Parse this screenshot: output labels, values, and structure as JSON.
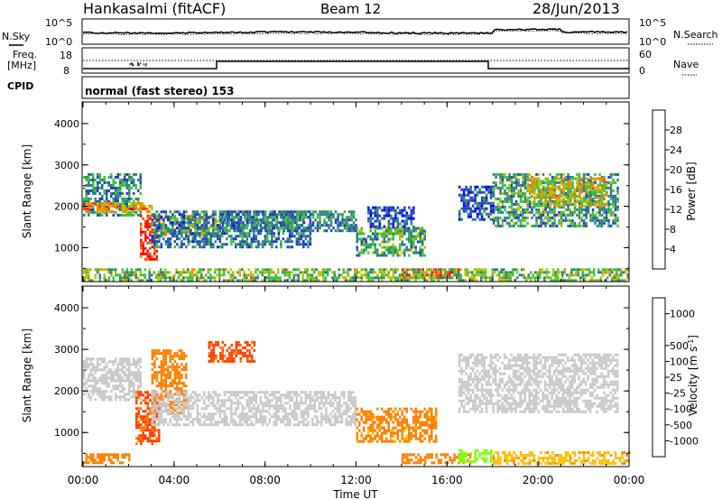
{
  "header": {
    "station": "Hankasalmi (fitACF)",
    "beam": "Beam 12",
    "date": "28/Jun/2013"
  },
  "strips": {
    "nsky_label": "N.Sky",
    "nsearch_label": "N.Search",
    "noise_tick_top": "10^5",
    "noise_tick_bottom": "10^0",
    "freq_label_1": "Freq.",
    "freq_label_2": "[MHz]",
    "freq_tick_top": "18",
    "freq_tick_bottom": "8",
    "nave_label": "Nave",
    "nave_tick_top": "60",
    "nave_tick_bottom": "0",
    "cpid_label": "CPID",
    "cpid_text": "normal (fast stereo) 153"
  },
  "colors": {
    "power_scale": [
      "#0000ff",
      "#1f3fbf",
      "#2e7f7f",
      "#3fbf3f",
      "#bfbf00",
      "#ff8000",
      "#ff3f00",
      "#ff0000"
    ],
    "velocity_scale": [
      "#ff0000",
      "#ff4000",
      "#ff8000",
      "#ffbf00",
      "#c8c8c8",
      "#7fff00",
      "#3fbf3f",
      "#2e7f7f",
      "#1f3fbf",
      "#0000ff"
    ],
    "ground_scatter": "#c8c8c8"
  },
  "chart_data": [
    {
      "type": "heatmap",
      "name": "power",
      "ylabel": "Slant Range [km]",
      "xlabel": "Time UT",
      "x_ticks": [
        "00:00",
        "04:00",
        "08:00",
        "12:00",
        "16:00",
        "20:00",
        "00:00"
      ],
      "y_ticks": [
        "1000",
        "2000",
        "3000",
        "4000"
      ],
      "ylim": [
        180,
        4500
      ],
      "xlim_hours": [
        0,
        24
      ],
      "colorbar_label": "Power [dB]",
      "colorbar_ticks": [
        "4",
        "8",
        "12",
        "16",
        "20",
        "24",
        "28"
      ],
      "colorbar_range": [
        0,
        30
      ],
      "bands": [
        {
          "t": [
            0,
            2.5
          ],
          "r": [
            1800,
            2800
          ],
          "level": 10
        },
        {
          "t": [
            0,
            3.0
          ],
          "r": [
            1900,
            2100
          ],
          "level": 20
        },
        {
          "t": [
            2.5,
            3.2
          ],
          "r": [
            700,
            1800
          ],
          "level": 26
        },
        {
          "t": [
            3.2,
            6.0
          ],
          "r": [
            1300,
            1800
          ],
          "level": 17
        },
        {
          "t": [
            3.0,
            10.0
          ],
          "r": [
            1000,
            1900
          ],
          "level": 8
        },
        {
          "t": [
            6.0,
            12.0
          ],
          "r": [
            1400,
            1900
          ],
          "level": 9
        },
        {
          "t": [
            12.0,
            15.0
          ],
          "r": [
            800,
            1500
          ],
          "level": 12
        },
        {
          "t": [
            12.5,
            14.5
          ],
          "r": [
            1500,
            2000
          ],
          "level": 6
        },
        {
          "t": [
            14.0,
            16.5
          ],
          "r": [
            300,
            500
          ],
          "level": 26
        },
        {
          "t": [
            16.5,
            18.0
          ],
          "r": [
            1700,
            2500
          ],
          "level": 6
        },
        {
          "t": [
            18.0,
            23.5
          ],
          "r": [
            1500,
            2800
          ],
          "level": 11
        },
        {
          "t": [
            19.5,
            23.0
          ],
          "r": [
            2000,
            2700
          ],
          "level": 17
        },
        {
          "t": [
            0,
            24
          ],
          "r": [
            200,
            500
          ],
          "level": 14
        }
      ]
    },
    {
      "type": "heatmap",
      "name": "velocity",
      "ylabel": "Slant Range [km]",
      "xlabel": "Time UT",
      "x_ticks": [
        "00:00",
        "04:00",
        "08:00",
        "12:00",
        "16:00",
        "20:00",
        "00:00"
      ],
      "y_ticks": [
        "1000",
        "2000",
        "3000",
        "4000"
      ],
      "ylim": [
        180,
        4500
      ],
      "xlim_hours": [
        0,
        24
      ],
      "colorbar_label": "Velocity [m s^-1]",
      "colorbar_ticks": [
        "-1000",
        "-500",
        "-100",
        "-25",
        "25",
        "100",
        "500",
        "1000"
      ],
      "colorbar_range": [
        -1200,
        1200
      ],
      "bands": [
        {
          "t": [
            0,
            2.5
          ],
          "r": [
            1800,
            2800
          ],
          "value": "gs"
        },
        {
          "t": [
            2.3,
            3.3
          ],
          "r": [
            700,
            2000
          ],
          "value": -600
        },
        {
          "t": [
            3.0,
            4.5
          ],
          "r": [
            1500,
            3000
          ],
          "value": -300
        },
        {
          "t": [
            5.5,
            7.5
          ],
          "r": [
            2700,
            3200
          ],
          "value": -700
        },
        {
          "t": [
            3.0,
            12.0
          ],
          "r": [
            1200,
            2000
          ],
          "value": "gs"
        },
        {
          "t": [
            12.0,
            15.5
          ],
          "r": [
            800,
            1600
          ],
          "value": -150
        },
        {
          "t": [
            14.0,
            17.0
          ],
          "r": [
            300,
            500
          ],
          "value": -250
        },
        {
          "t": [
            16.5,
            18.0
          ],
          "r": [
            300,
            600
          ],
          "value": 60
        },
        {
          "t": [
            16.5,
            23.5
          ],
          "r": [
            1500,
            2900
          ],
          "value": "gs"
        },
        {
          "t": [
            18.0,
            24.0
          ],
          "r": [
            250,
            550
          ],
          "value": -80
        },
        {
          "t": [
            0,
            2.0
          ],
          "r": [
            300,
            500
          ],
          "value": -300
        }
      ]
    }
  ]
}
